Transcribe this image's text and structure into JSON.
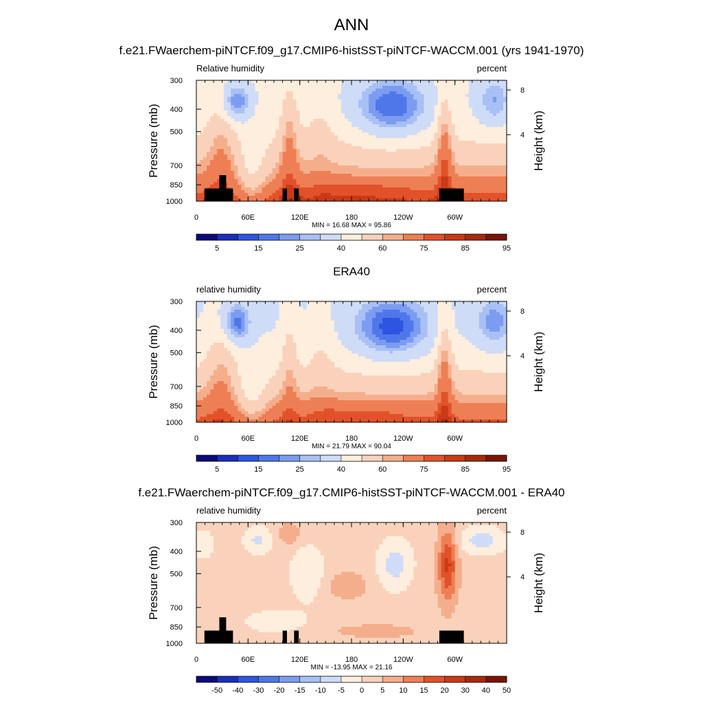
{
  "figure": {
    "title": "ANN"
  },
  "chart_data": [
    {
      "type": "heatmap",
      "title": "f.e21.FWaerchem-piNTCF.f09_g17.CMIP6-histSST-piNTCF-WACCM.001 (yrs 1941-1970)",
      "left_label": "Relative humidity",
      "right_label": "percent",
      "ylabel": "Pressure (mb)",
      "ylabel_right": "Height (km)",
      "x_ticks": [
        "0",
        "60E",
        "120E",
        "180",
        "120W",
        "60W"
      ],
      "y_ticks": [
        "300",
        "400",
        "500",
        "700",
        "850",
        "1000"
      ],
      "y_ticks_right": [
        "8",
        "4"
      ],
      "stats": "MIN =  16.68  MAX =  95.86",
      "colorbar_labels": [
        "5",
        "15",
        "25",
        "40",
        "60",
        "75",
        "85",
        "95"
      ],
      "min": 16.68,
      "max": 95.86
    },
    {
      "type": "heatmap",
      "title": "ERA40",
      "left_label": "relative humidity",
      "right_label": "percent",
      "ylabel": "Pressure (mb)",
      "ylabel_right": "Height (km)",
      "x_ticks": [
        "0",
        "60E",
        "120E",
        "180",
        "120W",
        "60W"
      ],
      "y_ticks": [
        "300",
        "400",
        "500",
        "700",
        "850",
        "1000"
      ],
      "y_ticks_right": [
        "8",
        "4"
      ],
      "stats": "MIN =  21.79  MAX =  90.04",
      "colorbar_labels": [
        "5",
        "15",
        "25",
        "40",
        "60",
        "75",
        "85",
        "95"
      ],
      "min": 21.79,
      "max": 90.04
    },
    {
      "type": "heatmap",
      "title": "f.e21.FWaerchem-piNTCF.f09_g17.CMIP6-histSST-piNTCF-WACCM.001 - ERA40",
      "left_label": "relative humidity",
      "right_label": "percent",
      "ylabel": "Pressure (mb)",
      "ylabel_right": "Height (km)",
      "x_ticks": [
        "0",
        "60E",
        "120E",
        "180",
        "120W",
        "60W"
      ],
      "y_ticks": [
        "300",
        "400",
        "500",
        "700",
        "850",
        "1000"
      ],
      "y_ticks_right": [
        "8",
        "4"
      ],
      "stats": "MIN = -13.95  MAX =  21.16",
      "colorbar_labels": [
        "-50",
        "-40",
        "-30",
        "-20",
        "-15",
        "-10",
        "-5",
        "0",
        "5",
        "10",
        "15",
        "20",
        "30",
        "40",
        "50"
      ],
      "min": -13.95,
      "max": 21.16
    }
  ],
  "colorbar": {
    "colors": [
      "#0a0a7a",
      "#1a2fb8",
      "#2d55e0",
      "#4f77ea",
      "#7b9cf0",
      "#a8c0f5",
      "#cfdcf8",
      "#fdeedd",
      "#fad2bb",
      "#f5ae8c",
      "#ee7f55",
      "#e2522a",
      "#c93a16",
      "#a52a0f",
      "#7a1405"
    ]
  }
}
